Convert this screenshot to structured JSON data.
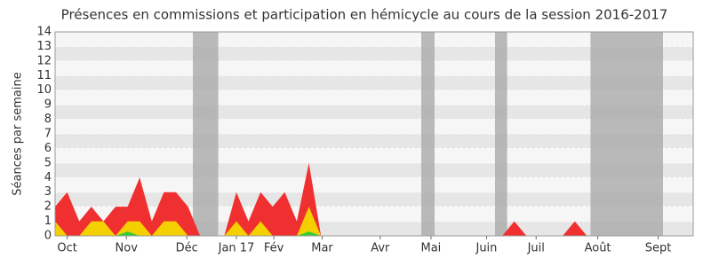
{
  "chart_data": {
    "type": "area",
    "title": "Présences en commissions et participation en hémicycle au cours de la session 2016-2017",
    "y_label": "Séances par semaine",
    "x": [
      0,
      1,
      2,
      3,
      4,
      5,
      6,
      7,
      8,
      9,
      10,
      11,
      12,
      13,
      14,
      15,
      16,
      17,
      18,
      19,
      20,
      21,
      22,
      23,
      24,
      25,
      26,
      27,
      28,
      29,
      30,
      31,
      32,
      33,
      34,
      35,
      36,
      37,
      38,
      39,
      40,
      41,
      42,
      43,
      44,
      45,
      46,
      47,
      48,
      49,
      50,
      51,
      52
    ],
    "xlim": [
      0,
      52.8
    ],
    "xticks": [
      {
        "value": 1.0,
        "label": "Oct"
      },
      {
        "value": 5.9,
        "label": "Nov"
      },
      {
        "value": 10.9,
        "label": "Déc"
      },
      {
        "value": 15.0,
        "label": "Jan 17"
      },
      {
        "value": 18.1,
        "label": "Fév"
      },
      {
        "value": 22.1,
        "label": "Mar"
      },
      {
        "value": 26.9,
        "label": "Avr"
      },
      {
        "value": 31.1,
        "label": "Mai"
      },
      {
        "value": 35.7,
        "label": "Juin"
      },
      {
        "value": 39.8,
        "label": "Juil"
      },
      {
        "value": 44.9,
        "label": "Août"
      },
      {
        "value": 49.9,
        "label": "Sept"
      }
    ],
    "ylim": [
      0,
      14
    ],
    "yticks": [
      0,
      1,
      2,
      3,
      4,
      5,
      6,
      7,
      8,
      9,
      10,
      11,
      12,
      13,
      14
    ],
    "grid": true,
    "shaded_ranges": [
      [
        11.4,
        13.5
      ],
      [
        30.3,
        31.4
      ],
      [
        36.4,
        37.4
      ],
      [
        44.3,
        50.3
      ]
    ],
    "shade_color": "#aaaaaa",
    "series": [
      {
        "color": "#f03030",
        "values": [
          2,
          3,
          1,
          2,
          1,
          2,
          2,
          4,
          1,
          3,
          3,
          2,
          0,
          0,
          0,
          3,
          1,
          3,
          2,
          3,
          1,
          5,
          0,
          0,
          0,
          0,
          0,
          0,
          0,
          0,
          0,
          0,
          0,
          0,
          0,
          0,
          0,
          0,
          1,
          0,
          0,
          0,
          0,
          1,
          0,
          0,
          0,
          0,
          0,
          0,
          0,
          0,
          0
        ]
      },
      {
        "color": "#f5d000",
        "values": [
          1,
          0,
          0,
          1,
          1,
          0,
          1,
          1,
          0,
          1,
          1,
          0,
          0,
          0,
          0,
          1,
          0,
          1,
          0,
          0,
          0,
          2,
          0,
          0,
          0,
          0,
          0,
          0,
          0,
          0,
          0,
          0,
          0,
          0,
          0,
          0,
          0,
          0,
          0,
          0,
          0,
          0,
          0,
          0,
          0,
          0,
          0,
          0,
          0,
          0,
          0,
          0,
          0
        ]
      },
      {
        "color": "#33cc33",
        "values": [
          0,
          0,
          0,
          0,
          0,
          0,
          0.3,
          0,
          0,
          0,
          0,
          0,
          0,
          0,
          0,
          0,
          0,
          0,
          0,
          0,
          0,
          0.3,
          0,
          0,
          0,
          0,
          0,
          0,
          0,
          0,
          0,
          0,
          0,
          0,
          0,
          0,
          0,
          0,
          0,
          0,
          0,
          0,
          0,
          0,
          0,
          0,
          0,
          0,
          0,
          0,
          0,
          0,
          0
        ]
      }
    ]
  }
}
